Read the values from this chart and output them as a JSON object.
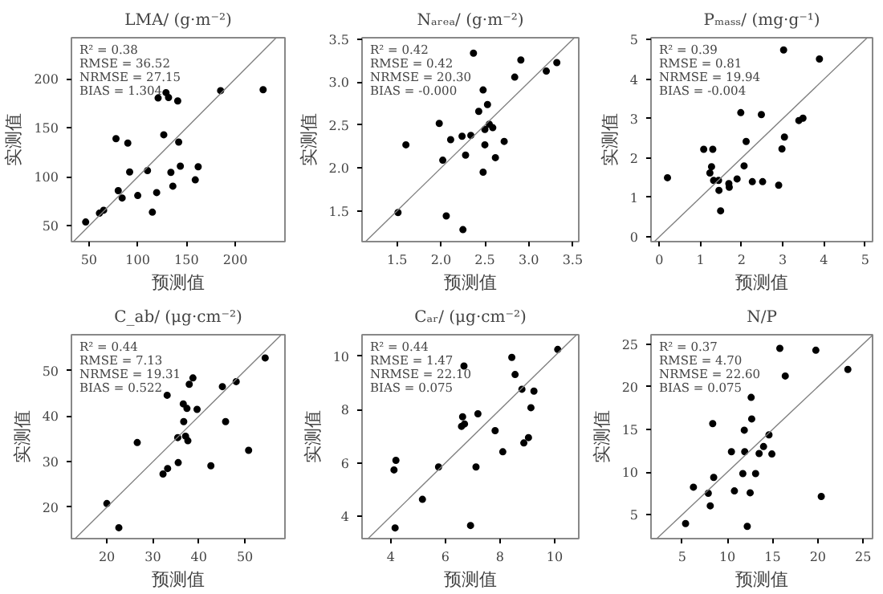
{
  "chart_data": [
    {
      "type": "scatter",
      "title": "LMA/ (g·m⁻²)",
      "xlabel": "预测值",
      "ylabel": "实测值",
      "xlim": [
        32,
        251
      ],
      "ylim": [
        34,
        242
      ],
      "xticks": [
        50,
        100,
        150,
        200
      ],
      "yticks": [
        50,
        100,
        150,
        200
      ],
      "grid": false,
      "annotations": [
        "R² = 0.38",
        "RMSE = 36.52",
        "NRMSE = 27.15",
        "BIAS = 1.304"
      ],
      "series": [
        {
          "type": "scatter",
          "color": "#000000",
          "x": [
            46.6,
            60.7,
            65,
            77.7,
            80,
            84,
            89.8,
            91.7,
            100,
            110,
            120.9,
            119.4,
            115,
            126.7,
            129,
            131.6,
            134,
            136,
            141,
            142,
            143.7,
            159,
            162,
            185,
            228.6
          ],
          "values": [
            54,
            63,
            66,
            139,
            86,
            78.5,
            134.5,
            105,
            81,
            106.5,
            180.5,
            84,
            64,
            143,
            186,
            181,
            104.6,
            90.6,
            177.5,
            135.5,
            111,
            97,
            110.4,
            188,
            189
          ]
        },
        {
          "type": "line",
          "color": "#808080",
          "x": [
            34,
            242
          ],
          "values": [
            34,
            242
          ]
        }
      ]
    },
    {
      "type": "scatter",
      "title": "Nₐᵣₑₐ/ (g·m⁻²)",
      "xlabel": "预测值",
      "ylabel": "实测值",
      "xlim": [
        1.1,
        3.57
      ],
      "ylim": [
        1.14,
        3.52
      ],
      "xticks": [
        1.5,
        {
          "value": 2,
          "label": "2.0"
        },
        2.5,
        {
          "value": 3,
          "label": "3.0"
        },
        3.5
      ],
      "yticks": [
        1.5,
        {
          "value": 2,
          "label": "2.0"
        },
        2.5,
        {
          "value": 3,
          "label": "3.0"
        },
        3.5
      ],
      "grid": false,
      "annotations": [
        "R² = 0.42",
        "RMSE = 0.42",
        "NRMSE = 20.30",
        "BIAS = -0.000"
      ],
      "series": [
        {
          "type": "scatter",
          "color": "#000000",
          "x": [
            1.51,
            1.6,
            1.98,
            2.02,
            2.06,
            2.11,
            2.24,
            2.25,
            2.28,
            2.34,
            2.37,
            2.43,
            2.48,
            2.48,
            2.5,
            2.5,
            2.53,
            2.55,
            2.59,
            2.62,
            2.72,
            2.84,
            2.91,
            3.2,
            3.32
          ],
          "values": [
            1.48,
            2.27,
            2.52,
            2.09,
            1.44,
            2.33,
            2.37,
            1.28,
            2.15,
            2.38,
            3.34,
            2.66,
            2.91,
            1.95,
            2.27,
            2.45,
            2.74,
            2.51,
            2.47,
            2.12,
            2.31,
            3.06,
            3.26,
            3.13,
            3.23
          ]
        },
        {
          "type": "line",
          "color": "#808080",
          "x": [
            1.14,
            3.52
          ],
          "values": [
            1.14,
            3.52
          ]
        }
      ]
    },
    {
      "type": "scatter",
      "title": "Pₘₐₛₛ/ (mg·g⁻¹)",
      "xlabel": "预测值",
      "ylabel": "实测值",
      "xlim": [
        -0.2,
        5.18
      ],
      "ylim": [
        -0.12,
        5.05
      ],
      "xticks": [
        0,
        1,
        2,
        3,
        4,
        5
      ],
      "yticks": [
        0,
        1,
        2,
        3,
        4,
        5
      ],
      "grid": false,
      "annotations": [
        "R² = 0.39",
        "RMSE = 0.81",
        "NRMSE = 19.94",
        "BIAS = -0.004"
      ],
      "series": [
        {
          "type": "scatter",
          "color": "#000000",
          "x": [
            0.2,
            1.08,
            1.3,
            1.23,
            1.27,
            1.32,
            1.44,
            1.45,
            1.49,
            1.69,
            1.7,
            1.89,
            1.98,
            2.06,
            2.11,
            2.26,
            2.48,
            2.51,
            2.9,
            2.98,
            3.04,
            3.02,
            3.39,
            3.49,
            3.89
          ],
          "values": [
            1.5,
            2.22,
            2.22,
            1.62,
            1.78,
            1.43,
            1.43,
            1.18,
            0.66,
            1.35,
            1.26,
            1.47,
            3.15,
            1.8,
            2.42,
            1.4,
            3.1,
            1.4,
            1.31,
            2.23,
            2.53,
            4.74,
            2.95,
            3.01,
            4.51
          ]
        },
        {
          "type": "line",
          "color": "#808080",
          "x": [
            -0.12,
            5.05
          ],
          "values": [
            -0.12,
            5.05
          ]
        }
      ]
    },
    {
      "type": "scatter",
      "title": "C_ab/ (μg·cm⁻²)",
      "xlabel": "预测值",
      "ylabel": "实测值",
      "xlim": [
        12.3,
        58.7
      ],
      "ylim": [
        13.1,
        57.9
      ],
      "xticks": [
        20,
        30,
        40,
        50
      ],
      "yticks": [
        20,
        30,
        40,
        50
      ],
      "grid": false,
      "annotations": [
        "R² = 0.44",
        "RMSE = 7.13",
        "NRMSE = 19.31",
        "BIAS = 0.522"
      ],
      "series": [
        {
          "type": "scatter",
          "color": "#000000",
          "x": [
            20,
            22.6,
            26.6,
            32.2,
            33.2,
            33.1,
            35.4,
            35.5,
            36.6,
            36.7,
            37.1,
            37.4,
            37.6,
            37.9,
            38.7,
            39.6,
            42.6,
            45.1,
            45.8,
            48.1,
            50.8,
            54.4
          ],
          "values": [
            20.8,
            15.5,
            34.2,
            27.3,
            28.5,
            44.6,
            35.3,
            29.8,
            42.7,
            38.8,
            35.6,
            41.7,
            34.6,
            47,
            48.4,
            41.5,
            29.1,
            46.5,
            38.8,
            47.6,
            32.5,
            52.8
          ]
        },
        {
          "type": "line",
          "color": "#808080",
          "x": [
            13.1,
            57.9
          ],
          "values": [
            13.1,
            57.9
          ]
        }
      ]
    },
    {
      "type": "scatter",
      "title": "Cₐᵣ/ (μg·cm⁻²)",
      "xlabel": "预测值",
      "ylabel": "实测值",
      "xlim": [
        2.95,
        10.88
      ],
      "ylim": [
        3.17,
        10.8
      ],
      "xticks": [
        4,
        6,
        8,
        10
      ],
      "yticks": [
        4,
        6,
        8,
        10
      ],
      "grid": false,
      "annotations": [
        "R² = 0.44",
        "RMSE = 1.47",
        "NRMSE = 22.10",
        "BIAS = 0.075"
      ],
      "series": [
        {
          "type": "scatter",
          "color": "#000000",
          "x": [
            4.16,
            4.12,
            4.19,
            5.16,
            5.75,
            6.59,
            6.63,
            6.7,
            6.68,
            6.92,
            7.12,
            7.19,
            7.82,
            8.1,
            8.43,
            8.55,
            8.8,
            8.87,
            9.04,
            9.13,
            9.24,
            10.11
          ],
          "values": [
            3.57,
            5.74,
            6.1,
            4.64,
            5.85,
            7.37,
            7.73,
            7.46,
            9.63,
            3.66,
            5.85,
            7.84,
            7.21,
            6.42,
            9.95,
            9.31,
            8.76,
            6.75,
            6.95,
            8.07,
            8.69,
            10.25
          ]
        },
        {
          "type": "line",
          "color": "#808080",
          "x": [
            3.17,
            10.8
          ],
          "values": [
            3.17,
            10.8
          ]
        }
      ]
    },
    {
      "type": "scatter",
      "title": "N/P",
      "xlabel": "预测值",
      "ylabel": "实测值",
      "xlim": [
        1.56,
        26.05
      ],
      "ylim": [
        2.2,
        26.1
      ],
      "xticks": [
        5,
        10,
        15,
        20,
        25
      ],
      "yticks": [
        5,
        10,
        15,
        20,
        25
      ],
      "grid": false,
      "annotations": [
        "R² = 0.37",
        "RMSE = 4.70",
        "NRMSE = 22.60",
        "BIAS = 0.075"
      ],
      "series": [
        {
          "type": "scatter",
          "color": "#000000",
          "x": [
            5.38,
            6.25,
            7.89,
            8.11,
            8.38,
            8.49,
            10.45,
            10.78,
            11.71,
            11.87,
            11.92,
            12.2,
            12.52,
            12.63,
            12.69,
            13.12,
            13.51,
            14,
            14.6,
            14.92,
            15.8,
            16.4,
            19.78,
            20.38,
            23.32
          ],
          "values": [
            3.96,
            8.23,
            7.52,
            6.04,
            15.68,
            9.38,
            12.39,
            7.79,
            9.82,
            14.91,
            12.39,
            3.63,
            7.57,
            18.75,
            16.23,
            9.82,
            12.17,
            12.99,
            14.36,
            12.12,
            24.5,
            21.26,
            24.28,
            7.14,
            22.03
          ]
        },
        {
          "type": "line",
          "color": "#808080",
          "x": [
            2.2,
            26.05
          ],
          "values": [
            2.2,
            26.05
          ]
        }
      ]
    }
  ]
}
